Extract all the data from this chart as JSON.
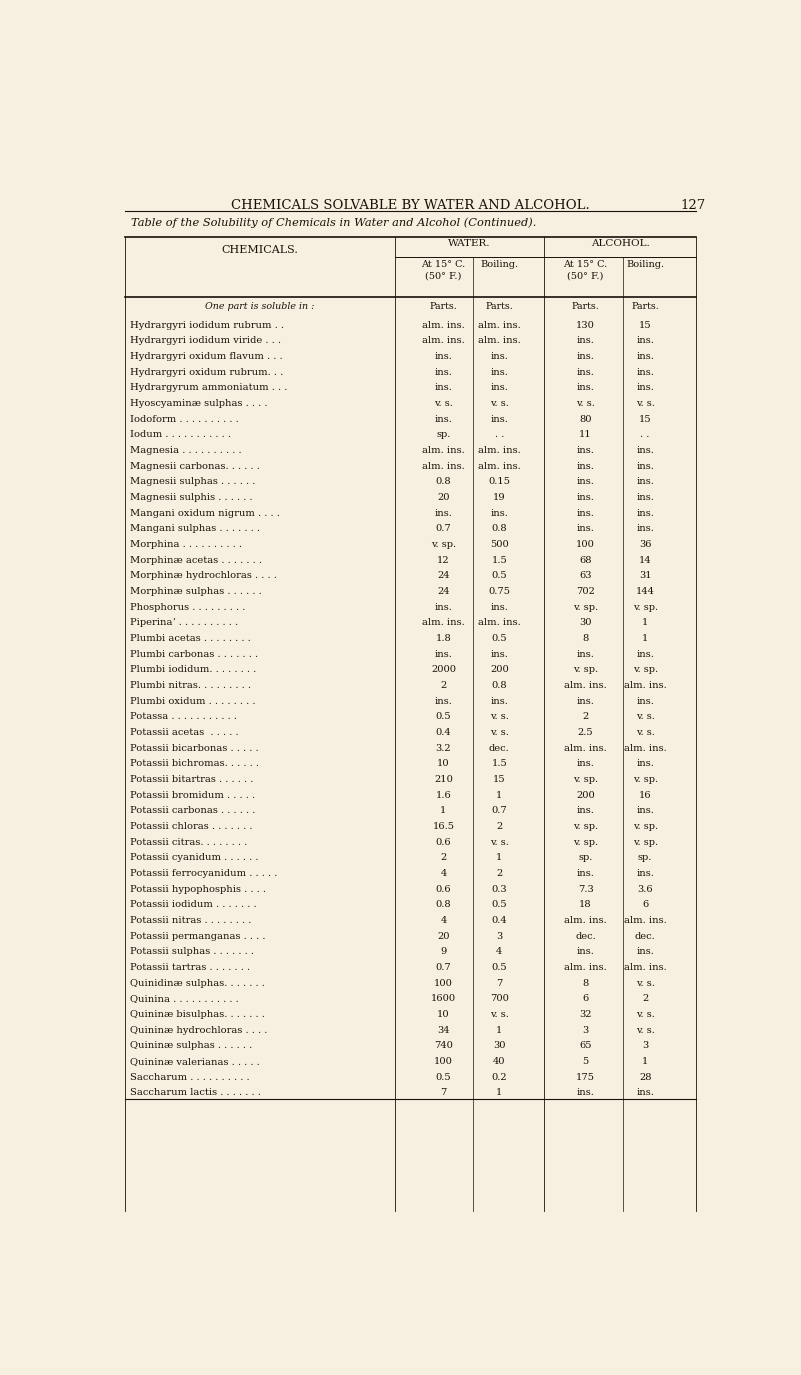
{
  "page_title": "CHEMICALS SOLVABLE BY WATER AND ALCOHOL.",
  "page_number": "127",
  "table_title": "Table of the Solubility of Chemicals in Water and Alcohol (Continued).",
  "unit_row": [
    "One part is soluble in :",
    "Parts.",
    "Parts.",
    "Parts.",
    "Parts."
  ],
  "bg_color": "#f5f0e0",
  "text_color": "#1a1008",
  "rows": [
    [
      "Hydrargyri iodidum rubrum . .",
      "alm. ins.",
      "alm. ins.",
      "130",
      "15"
    ],
    [
      "Hydrargyri iodidum viride . . .",
      "alm. ins.",
      "alm. ins.",
      "ins.",
      "ins."
    ],
    [
      "Hydrargyri oxidum flavum . . .",
      "ins.",
      "ins.",
      "ins.",
      "ins."
    ],
    [
      "Hydrargyri oxidum rubrum. . .",
      "ins.",
      "ins.",
      "ins.",
      "ins."
    ],
    [
      "Hydrargyrum ammoniatum . . .",
      "ins.",
      "ins.",
      "ins.",
      "ins."
    ],
    [
      "Hyoscyaminæ sulphas . . . .",
      "v. s.",
      "v. s.",
      "v. s.",
      "v. s."
    ],
    [
      "Iodoform . . . . . . . . . .",
      "ins.",
      "ins.",
      "80",
      "15"
    ],
    [
      "Iodum . . . . . . . . . . .",
      "sp.",
      ". .",
      "11",
      ". ."
    ],
    [
      "Magnesia . . . . . . . . . .",
      "alm. ins.",
      "alm. ins.",
      "ins.",
      "ins."
    ],
    [
      "Magnesii carbonas. . . . . .",
      "alm. ins.",
      "alm. ins.",
      "ins.",
      "ins."
    ],
    [
      "Magnesii sulphas . . . . . .",
      "0.8",
      "0.15",
      "ins.",
      "ins."
    ],
    [
      "Magnesii sulphis . . . . . .",
      "20",
      "19",
      "ins.",
      "ins."
    ],
    [
      "Mangani oxidum nigrum . . . .",
      "ins.",
      "ins.",
      "ins.",
      "ins."
    ],
    [
      "Mangani sulphas . . . . . . .",
      "0.7",
      "0.8",
      "ins.",
      "ins."
    ],
    [
      "Morphina . . . . . . . . . .",
      "v. sp.",
      "500",
      "100",
      "36"
    ],
    [
      "Morphinæ acetas . . . . . . .",
      "12",
      "1.5",
      "68",
      "14"
    ],
    [
      "Morphinæ hydrochloras . . . .",
      "24",
      "0.5",
      "63",
      "31"
    ],
    [
      "Morphinæ sulphas . . . . . .",
      "24",
      "0.75",
      "702",
      "144"
    ],
    [
      "Phosphorus . . . . . . . . .",
      "ins.",
      "ins.",
      "v. sp.",
      "v. sp."
    ],
    [
      "Piperinaʼ . . . . . . . . . .",
      "alm. ins.",
      "alm. ins.",
      "30",
      "1"
    ],
    [
      "Plumbi acetas . . . . . . . .",
      "1.8",
      "0.5",
      "8",
      "1"
    ],
    [
      "Plumbi carbonas . . . . . . .",
      "ins.",
      "ins.",
      "ins.",
      "ins."
    ],
    [
      "Plumbi iodidum. . . . . . . .",
      "2000",
      "200",
      "v. sp.",
      "v. sp."
    ],
    [
      "Plumbi nitras. . . . . . . . .",
      "2",
      "0.8",
      "alm. ins.",
      "alm. ins."
    ],
    [
      "Plumbi oxidum . . . . . . . .",
      "ins.",
      "ins.",
      "ins.",
      "ins."
    ],
    [
      "Potassa . . . . . . . . . . .",
      "0.5",
      "v. s.",
      "2",
      "v. s."
    ],
    [
      "Potassii acetas  . . . . .",
      "0.4",
      "v. s.",
      "2.5",
      "v. s."
    ],
    [
      "Potassii bicarbonas . . . . .",
      "3.2",
      "dec.",
      "alm. ins.",
      "alm. ins."
    ],
    [
      "Potassii bichromas. . . . . .",
      "10",
      "1.5",
      "ins.",
      "ins."
    ],
    [
      "Potassii bitartras . . . . . .",
      "210",
      "15",
      "v. sp.",
      "v. sp."
    ],
    [
      "Potassii bromidum . . . . .",
      "1.6",
      "1",
      "200",
      "16"
    ],
    [
      "Potassii carbonas . . . . . .",
      "1",
      "0.7",
      "ins.",
      "ins."
    ],
    [
      "Potassii chloras . . . . . . .",
      "16.5",
      "2",
      "v. sp.",
      "v. sp."
    ],
    [
      "Potassii citras. . . . . . . .",
      "0.6",
      "v. s.",
      "v. sp.",
      "v. sp."
    ],
    [
      "Potassii cyanidum . . . . . .",
      "2",
      "1",
      "sp.",
      "sp."
    ],
    [
      "Potassii ferrocyanidum . . . . .",
      "4",
      "2",
      "ins.",
      "ins."
    ],
    [
      "Potassii hypophosphis . . . .",
      "0.6",
      "0.3",
      "7.3",
      "3.6"
    ],
    [
      "Potassii iodidum . . . . . . .",
      "0.8",
      "0.5",
      "18",
      "6"
    ],
    [
      "Potassii nitras . . . . . . . .",
      "4",
      "0.4",
      "alm. ins.",
      "alm. ins."
    ],
    [
      "Potassii permanganas . . . .",
      "20",
      "3",
      "dec.",
      "dec."
    ],
    [
      "Potassii sulphas . . . . . . .",
      "9",
      "4",
      "ins.",
      "ins."
    ],
    [
      "Potassii tartras . . . . . . .",
      "0.7",
      "0.5",
      "alm. ins.",
      "alm. ins."
    ],
    [
      "Quinidinæ sulphas. . . . . . .",
      "100",
      "7",
      "8",
      "v. s."
    ],
    [
      "Quinina . . . . . . . . . . .",
      "1600",
      "700",
      "6",
      "2"
    ],
    [
      "Quininæ bisulphas. . . . . . .",
      "10",
      "v. s.",
      "32",
      "v. s."
    ],
    [
      "Quininæ hydrochloras . . . .",
      "34",
      "1",
      "3",
      "v. s."
    ],
    [
      "Quininæ sulphas . . . . . .",
      "740",
      "30",
      "65",
      "3"
    ],
    [
      "Quininæ valerianas . . . . .",
      "100",
      "40",
      "5",
      "1"
    ],
    [
      "Saccharum . . . . . . . . . .",
      "0.5",
      "0.2",
      "175",
      "28"
    ],
    [
      "Saccharum lactis . . . . . . .",
      "7",
      "1",
      "ins.",
      "ins."
    ]
  ]
}
